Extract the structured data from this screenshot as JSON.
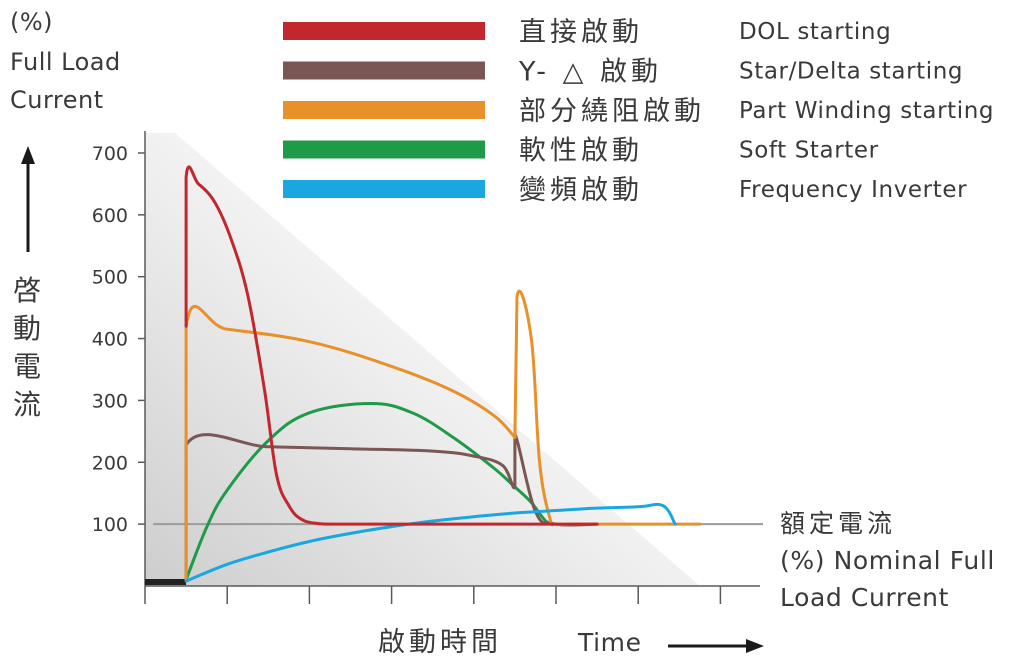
{
  "chart_data": {
    "type": "line",
    "y_unit_lines": [
      "(%)",
      "Full Load",
      "Current"
    ],
    "ylabel_zh": "啓動電流",
    "xlabel_zh": "啟動時間",
    "xlabel_en": "Time",
    "yticks": [
      100,
      200,
      300,
      400,
      500,
      600,
      700
    ],
    "ylim": [
      0,
      750
    ],
    "xlim": [
      0,
      15
    ],
    "x_tick_count": 8,
    "axis_arrows": true,
    "grid": false,
    "legend_position": "top",
    "nominal": {
      "value": 100,
      "label_zh": "額定電流",
      "label_en_lines": [
        "(%) Nominal Full",
        "Load Current"
      ],
      "color": "#9a9a9a"
    },
    "baseline_color": "#222222",
    "series": [
      {
        "name": "DOL starting",
        "name_zh": "直接啟動",
        "color": "#c1272d",
        "x": [
          1,
          1,
          1.3,
          1.7,
          2.1,
          2.5,
          2.9,
          3.2,
          3.5,
          3.8,
          4.2,
          4.8,
          6,
          8,
          10,
          11
        ],
        "y": [
          420,
          660,
          650,
          620,
          560,
          470,
          320,
          180,
          130,
          108,
          101,
          100,
          100,
          100,
          100,
          100
        ]
      },
      {
        "name": "Star/Delta starting",
        "name_zh": "Y- △ 啟動",
        "color": "#7a5752",
        "x": [
          1,
          1,
          3,
          5,
          7,
          8,
          8.7,
          9,
          9,
          9.5,
          10,
          11
        ],
        "y": [
          10,
          228,
          225,
          222,
          218,
          210,
          195,
          160,
          245,
          120,
          100,
          100
        ]
      },
      {
        "name": "Part Winding starting",
        "name_zh": "部分繞阻啟動",
        "color": "#e8902a",
        "x": [
          1,
          1,
          2,
          4,
          6,
          7.5,
          8.5,
          9,
          9,
          9.05,
          9.4,
          9.6,
          9.85,
          10,
          10.5,
          12,
          13.5
        ],
        "y": [
          10,
          420,
          415,
          395,
          355,
          315,
          275,
          240,
          240,
          468,
          400,
          200,
          110,
          100,
          100,
          100,
          100
        ]
      },
      {
        "name": "Soft Starter",
        "name_zh": "軟性啟動",
        "color": "#1f9a48",
        "x": [
          1,
          1.5,
          2,
          3,
          4,
          5.5,
          6.5,
          7.5,
          8.5,
          9,
          9.4,
          9.75,
          10
        ],
        "y": [
          10,
          95,
          155,
          235,
          280,
          295,
          280,
          240,
          190,
          160,
          135,
          105,
          100
        ]
      },
      {
        "name": "Frequency Inverter",
        "name_zh": "變頻啟動",
        "color": "#1aa7e0",
        "x": [
          1,
          2,
          3,
          4,
          5,
          6,
          7,
          8,
          9,
          10,
          11,
          12,
          12.6,
          12.9
        ],
        "y": [
          8,
          35,
          55,
          72,
          85,
          96,
          105,
          112,
          118,
          122,
          126,
          128,
          130,
          100
        ]
      }
    ]
  }
}
